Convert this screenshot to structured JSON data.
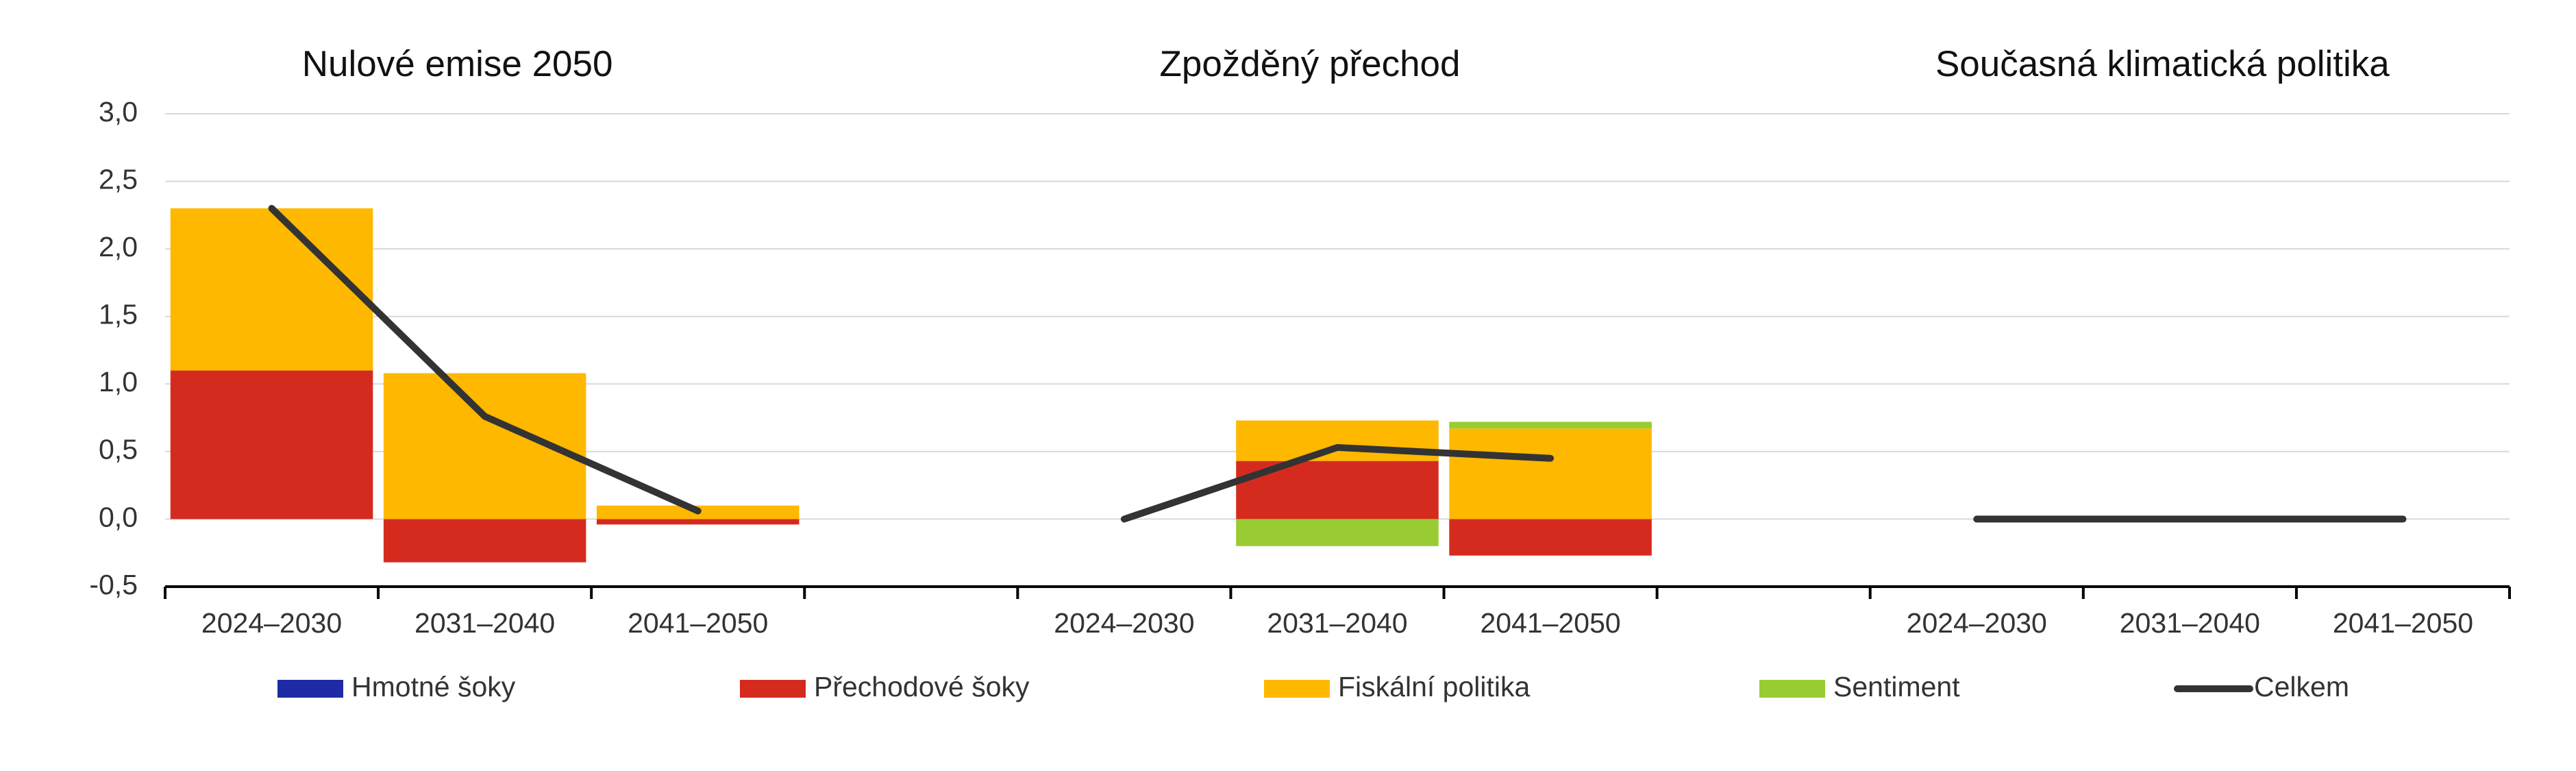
{
  "chart_data": [
    {
      "type": "bar",
      "title": "Nulové emise 2050",
      "categories": [
        "2024–2030",
        "2031–2040",
        "2041–2050"
      ],
      "ylim": [
        -0.5,
        3
      ],
      "yticks": [
        {
          "value": -0.5,
          "label": "-0,5"
        },
        {
          "value": 0,
          "label": "0,0"
        },
        {
          "value": 0.5,
          "label": "0,5"
        },
        {
          "value": 1,
          "label": "1,0"
        },
        {
          "value": 1.5,
          "label": "1,5"
        },
        {
          "value": 2,
          "label": "2,0"
        },
        {
          "value": 2.5,
          "label": "2,5"
        },
        {
          "value": 3,
          "label": "3,0"
        }
      ],
      "grid": true,
      "series": [
        {
          "name": "Hmotné šoky",
          "color": "#1f2aa5",
          "values": [
            0,
            0,
            0
          ]
        },
        {
          "name": "Přechodové šoky",
          "color": "#d52b1e",
          "values": [
            1.1,
            -0.32,
            -0.04
          ]
        },
        {
          "name": "Fiskální politika",
          "color": "#ffb800",
          "values": [
            1.2,
            1.08,
            0.1
          ]
        },
        {
          "name": "Sentiment",
          "color": "#99cc33",
          "values": [
            0,
            0,
            0
          ]
        },
        {
          "name": "Celkem",
          "color": "#333333",
          "type": "line",
          "values": [
            2.3,
            0.76,
            0.06
          ]
        }
      ]
    },
    {
      "type": "bar",
      "title": "Zpožděný přechod",
      "categories": [
        "2024–2030",
        "2031–2040",
        "2041–2050"
      ],
      "series": [
        {
          "name": "Hmotné šoky",
          "color": "#1f2aa5",
          "values": [
            0,
            0,
            0
          ]
        },
        {
          "name": "Přechodové šoky",
          "color": "#d52b1e",
          "values": [
            0,
            0.43,
            -0.27
          ]
        },
        {
          "name": "Fiskální politika",
          "color": "#ffb800",
          "values": [
            0,
            0.3,
            0.67
          ]
        },
        {
          "name": "Sentiment",
          "color": "#99cc33",
          "values": [
            0,
            -0.2,
            0.05
          ]
        },
        {
          "name": "Celkem",
          "color": "#333333",
          "type": "line",
          "values": [
            0,
            0.53,
            0.45
          ]
        }
      ]
    },
    {
      "type": "bar",
      "title": "Současná klimatická politika",
      "categories": [
        "2024–2030",
        "2031–2040",
        "2041–2050"
      ],
      "series": [
        {
          "name": "Hmotné šoky",
          "color": "#1f2aa5",
          "values": [
            0,
            0,
            0
          ]
        },
        {
          "name": "Přechodové šoky",
          "color": "#d52b1e",
          "values": [
            0,
            0,
            0
          ]
        },
        {
          "name": "Fiskální politika",
          "color": "#ffb800",
          "values": [
            0,
            0,
            0
          ]
        },
        {
          "name": "Sentiment",
          "color": "#99cc33",
          "values": [
            0,
            0,
            0
          ]
        },
        {
          "name": "Celkem",
          "color": "#333333",
          "type": "line",
          "values": [
            0,
            0,
            0
          ]
        }
      ]
    }
  ]
}
